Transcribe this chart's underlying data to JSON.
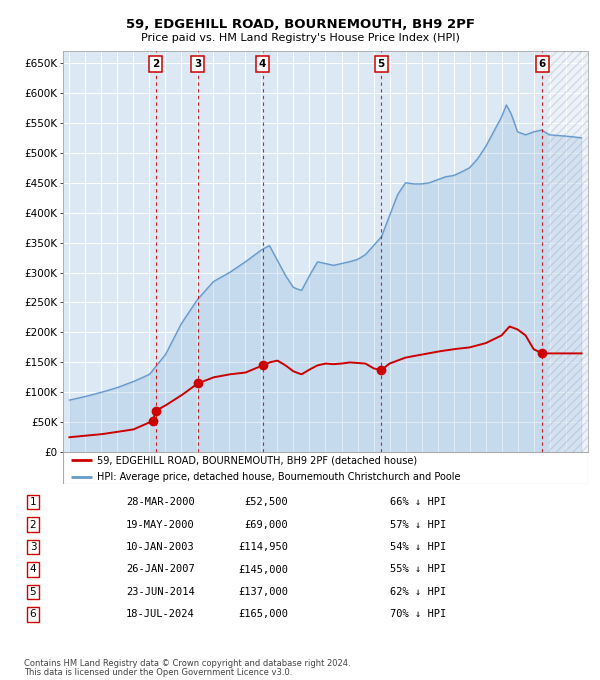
{
  "title": "59, EDGEHILL ROAD, BOURNEMOUTH, BH9 2PF",
  "subtitle": "Price paid vs. HM Land Registry's House Price Index (HPI)",
  "legend_line1": "59, EDGEHILL ROAD, BOURNEMOUTH, BH9 2PF (detached house)",
  "legend_line2": "HPI: Average price, detached house, Bournemouth Christchurch and Poole",
  "footer1": "Contains HM Land Registry data © Crown copyright and database right 2024.",
  "footer2": "This data is licensed under the Open Government Licence v3.0.",
  "hpi_color": "#6699cc",
  "price_color": "#cc0000",
  "bg_color": "#dce9f5",
  "ylim": [
    0,
    670000
  ],
  "yticks": [
    0,
    50000,
    100000,
    150000,
    200000,
    250000,
    300000,
    350000,
    400000,
    450000,
    500000,
    550000,
    600000,
    650000
  ],
  "ytick_labels": [
    "£0",
    "£50K",
    "£100K",
    "£150K",
    "£200K",
    "£250K",
    "£300K",
    "£350K",
    "£400K",
    "£450K",
    "£500K",
    "£550K",
    "£600K",
    "£650K"
  ],
  "xlim_start": 1994.6,
  "xlim_end": 2027.4,
  "xticks": [
    1995,
    1996,
    1997,
    1998,
    1999,
    2000,
    2001,
    2002,
    2003,
    2004,
    2005,
    2006,
    2007,
    2008,
    2009,
    2010,
    2011,
    2012,
    2013,
    2014,
    2015,
    2016,
    2017,
    2018,
    2019,
    2020,
    2021,
    2022,
    2023,
    2024,
    2025,
    2026,
    2027
  ],
  "transactions": [
    {
      "num": 1,
      "year": 2000.23,
      "price": 52500,
      "show_on_chart": false
    },
    {
      "num": 2,
      "year": 2000.38,
      "price": 69000,
      "show_on_chart": true
    },
    {
      "num": 3,
      "year": 2003.03,
      "price": 114950,
      "show_on_chart": true
    },
    {
      "num": 4,
      "year": 2007.07,
      "price": 145000,
      "show_on_chart": true
    },
    {
      "num": 5,
      "year": 2014.48,
      "price": 137000,
      "show_on_chart": true
    },
    {
      "num": 6,
      "year": 2024.54,
      "price": 165000,
      "show_on_chart": true
    }
  ],
  "table_rows": [
    {
      "num": 1,
      "date": "28-MAR-2000",
      "price": "£52,500",
      "pct": "66% ↓ HPI"
    },
    {
      "num": 2,
      "date": "19-MAY-2000",
      "price": "£69,000",
      "pct": "57% ↓ HPI"
    },
    {
      "num": 3,
      "date": "10-JAN-2003",
      "price": "£114,950",
      "pct": "54% ↓ HPI"
    },
    {
      "num": 4,
      "date": "26-JAN-2007",
      "price": "£145,000",
      "pct": "55% ↓ HPI"
    },
    {
      "num": 5,
      "date": "23-JUN-2014",
      "price": "£137,000",
      "pct": "62% ↓ HPI"
    },
    {
      "num": 6,
      "date": "18-JUL-2024",
      "price": "£165,000",
      "pct": "70% ↓ HPI"
    }
  ]
}
